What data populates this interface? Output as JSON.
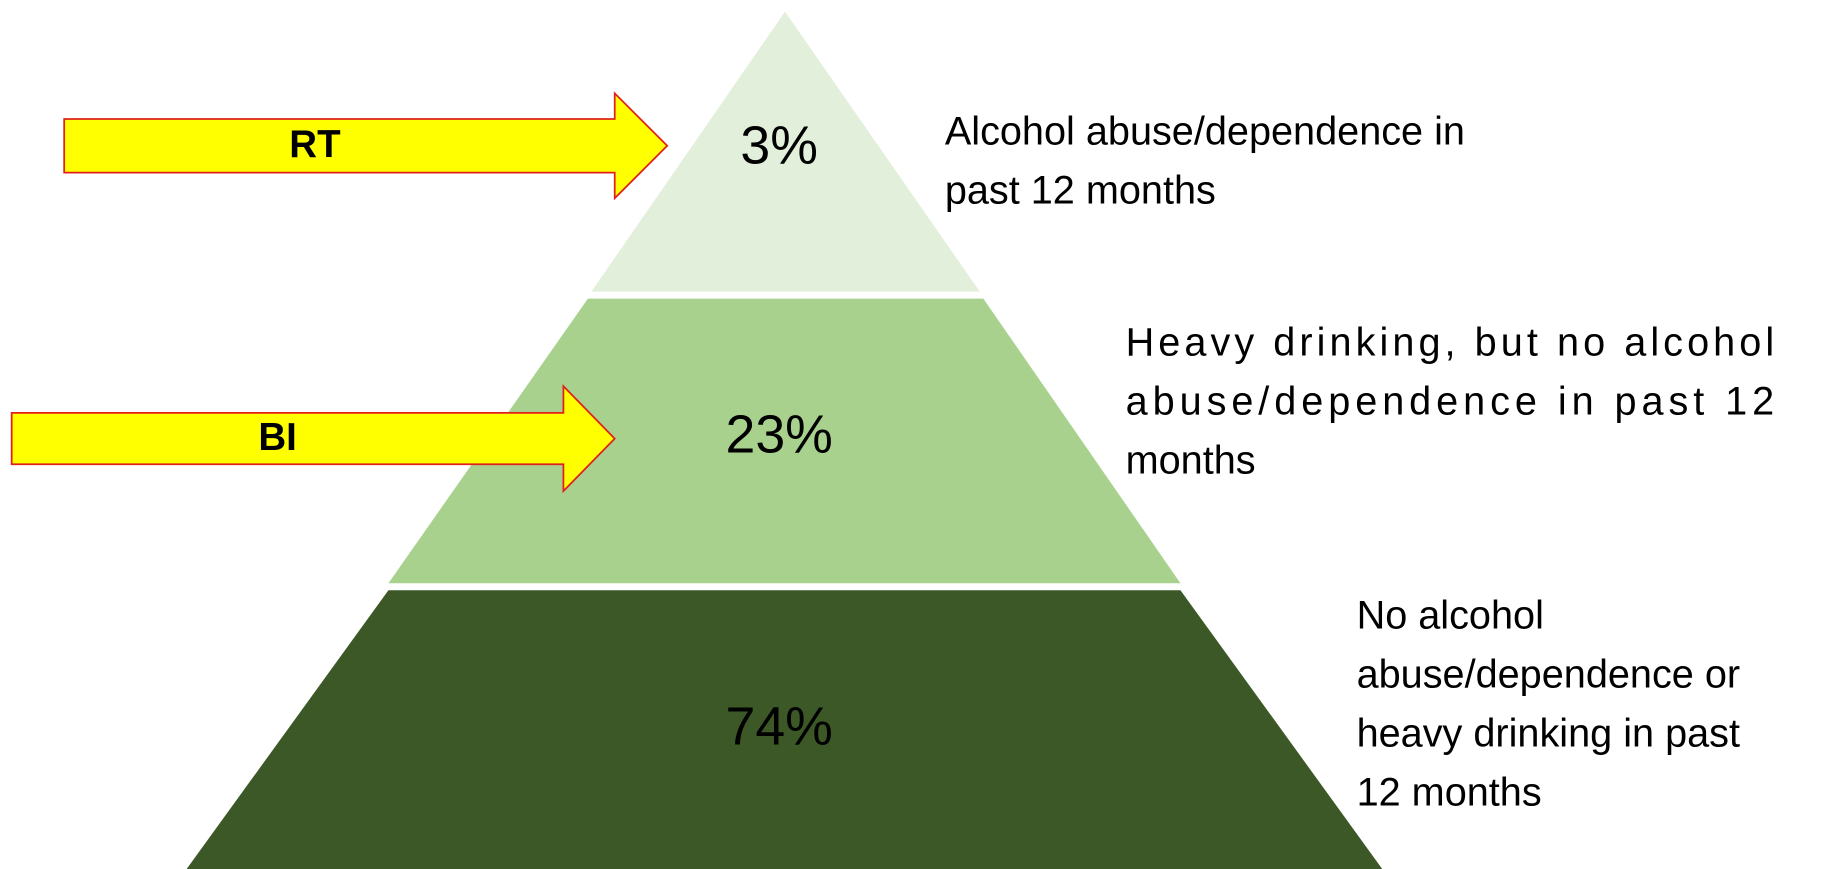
{
  "levels": [
    {
      "value": "3%",
      "description": [
        "Alcohol abuse/dependence in",
        "past 12 months"
      ]
    },
    {
      "value": "23%",
      "description": [
        "Heavy drinking, but no alcohol",
        "abuse/dependence in past 12",
        "months"
      ]
    },
    {
      "value": "74%",
      "description": [
        "No alcohol",
        "abuse/dependence or",
        "heavy drinking in past",
        "12 months"
      ]
    }
  ],
  "arrows": [
    {
      "label": "RT"
    },
    {
      "label": "BI"
    }
  ]
}
